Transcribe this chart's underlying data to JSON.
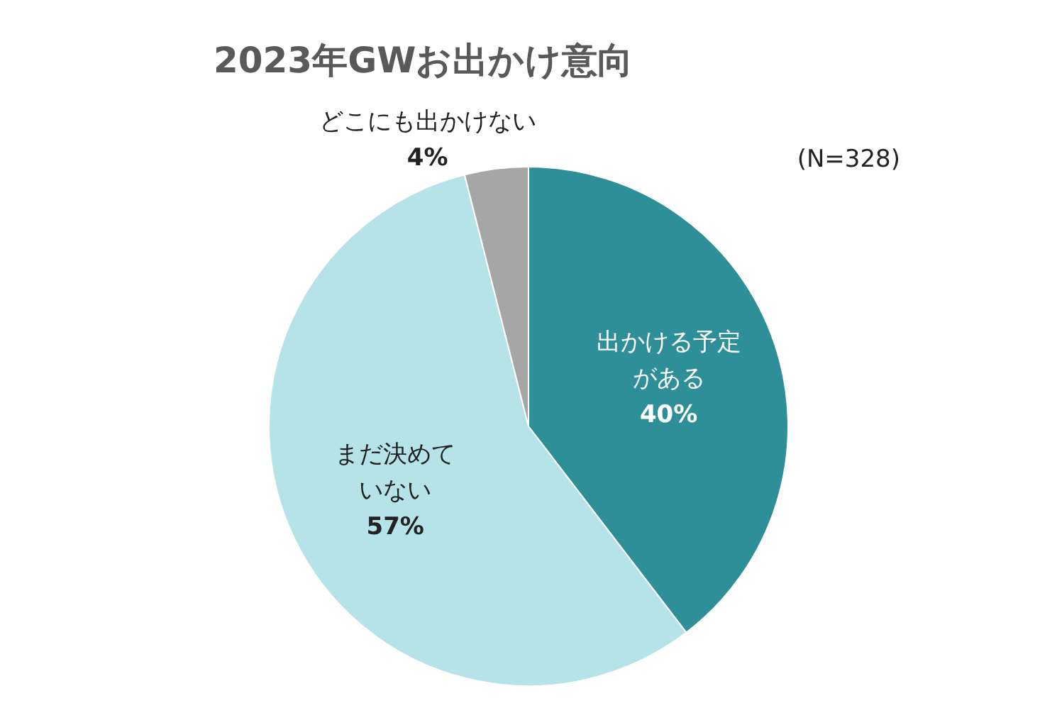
{
  "chart_data": {
    "type": "pie",
    "title": "2023年GWお出かけ意向",
    "categories": [
      "出かける予定がある",
      "まだ決めていない",
      "どこにも出かけない"
    ],
    "values": [
      40,
      57,
      4
    ],
    "colors": [
      "#2e8f99",
      "#b5e3e8",
      "#a6a6a6"
    ],
    "value_labels": [
      "40%",
      "57%",
      "4%"
    ],
    "annotations": [
      "(N=328)"
    ]
  }
}
